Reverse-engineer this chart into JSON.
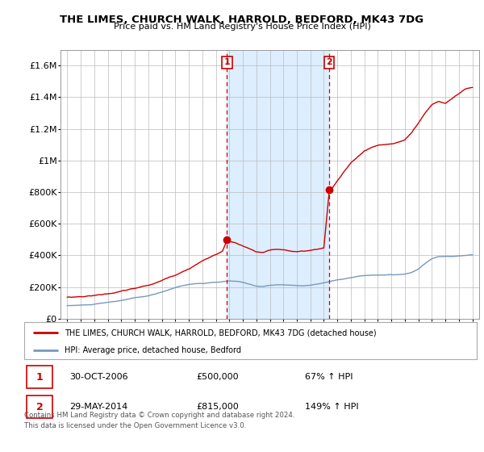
{
  "title": "THE LIMES, CHURCH WALK, HARROLD, BEDFORD, MK43 7DG",
  "subtitle": "Price paid vs. HM Land Registry's House Price Index (HPI)",
  "legend_line1": "THE LIMES, CHURCH WALK, HARROLD, BEDFORD, MK43 7DG (detached house)",
  "legend_line2": "HPI: Average price, detached house, Bedford",
  "footnote1": "Contains HM Land Registry data © Crown copyright and database right 2024.",
  "footnote2": "This data is licensed under the Open Government Licence v3.0.",
  "sale1_date": "30-OCT-2006",
  "sale1_price": "£500,000",
  "sale1_hpi": "67% ↑ HPI",
  "sale2_date": "29-MAY-2014",
  "sale2_price": "£815,000",
  "sale2_hpi": "149% ↑ HPI",
  "red_color": "#cc0000",
  "blue_color": "#7799bb",
  "shade_color": "#ddeeff",
  "chart_bg": "#ffffff",
  "background_color": "#ffffff",
  "ylim": [
    0,
    1700000
  ],
  "xlim_start": 1994.5,
  "xlim_end": 2025.5,
  "sale1_x": 2006.83,
  "sale1_y": 500000,
  "sale2_x": 2014.41,
  "sale2_y": 815000
}
